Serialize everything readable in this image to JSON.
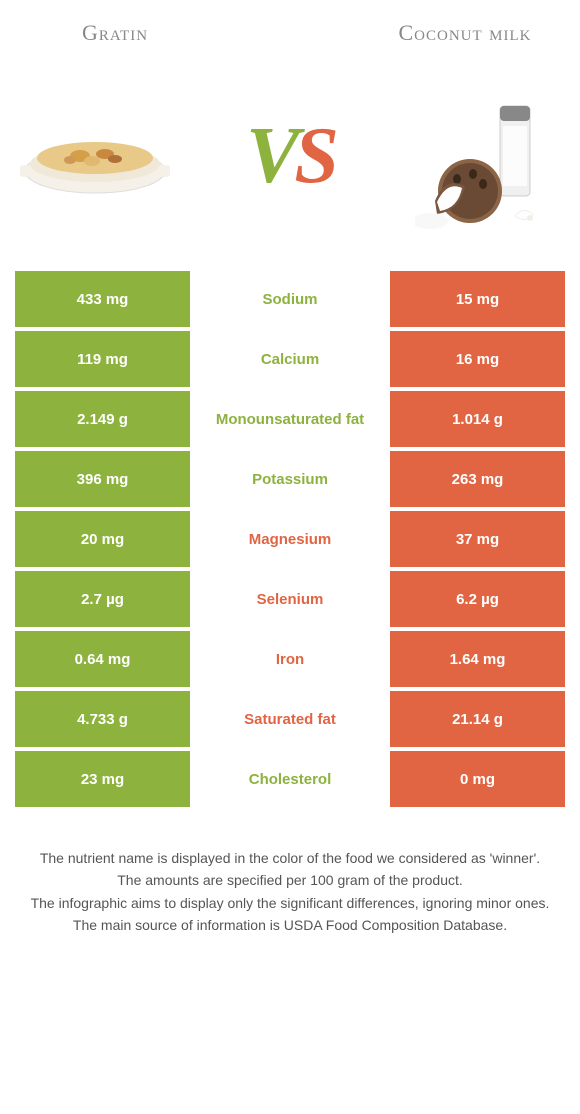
{
  "colors": {
    "left": "#8db23e",
    "right": "#e16543",
    "title": "#888888",
    "footer": "#555555",
    "bg": "#ffffff"
  },
  "foods": {
    "left": "Gratin",
    "right": "Coconut milk"
  },
  "vs": {
    "v": "V",
    "s": "S"
  },
  "rows": [
    {
      "left": "433 mg",
      "label": "Sodium",
      "right": "15 mg",
      "winner": "left"
    },
    {
      "left": "119 mg",
      "label": "Calcium",
      "right": "16 mg",
      "winner": "left"
    },
    {
      "left": "2.149 g",
      "label": "Monounsaturated fat",
      "right": "1.014 g",
      "winner": "left"
    },
    {
      "left": "396 mg",
      "label": "Potassium",
      "right": "263 mg",
      "winner": "left"
    },
    {
      "left": "20 mg",
      "label": "Magnesium",
      "right": "37 mg",
      "winner": "right"
    },
    {
      "left": "2.7 µg",
      "label": "Selenium",
      "right": "6.2 µg",
      "winner": "right"
    },
    {
      "left": "0.64 mg",
      "label": "Iron",
      "right": "1.64 mg",
      "winner": "right"
    },
    {
      "left": "4.733 g",
      "label": "Saturated fat",
      "right": "21.14 g",
      "winner": "right"
    },
    {
      "left": "23 mg",
      "label": "Cholesterol",
      "right": "0 mg",
      "winner": "left"
    }
  ],
  "footer": {
    "line1": "The nutrient name is displayed in the color of the food we considered as 'winner'.",
    "line2": "The amounts are specified per 100 gram of the product.",
    "line3": "The infographic aims to display only the significant differences, ignoring minor ones.",
    "line4": "The main source of information is USDA Food Composition Database."
  }
}
